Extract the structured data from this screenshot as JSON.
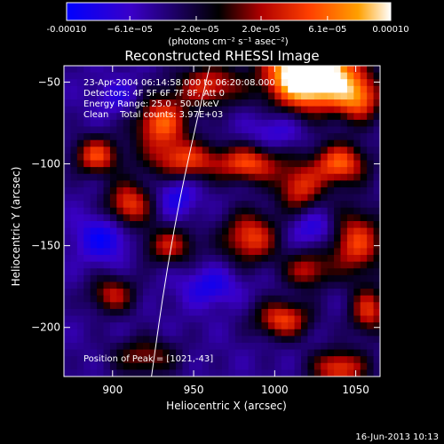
{
  "colorbar": {
    "ticks": [
      {
        "value": -0.0001,
        "label": "-0.00010"
      },
      {
        "value": -6.1e-05,
        "label": "−6.1e−05"
      },
      {
        "value": -2e-05,
        "label": "−2.0e−05"
      },
      {
        "value": 2e-05,
        "label": "2.0e−05"
      },
      {
        "value": 6.1e-05,
        "label": "6.1e−05"
      },
      {
        "value": 0.0001,
        "label": "0.00010"
      }
    ],
    "range": [
      -0.0001,
      0.0001
    ],
    "unit_label": "(photons cm⁻² s⁻¹ asec⁻²)",
    "colors": [
      "#0000ff",
      "#3a00c8",
      "#000000",
      "#b00000",
      "#ff4000",
      "#ffa000",
      "#ffffff"
    ]
  },
  "chart_data": {
    "type": "heatmap",
    "title": "Reconstructed RHESSI Image",
    "xlabel": "Heliocentric X (arcsec)",
    "ylabel": "Heliocentric Y (arcsec)",
    "xlim": [
      870,
      1065
    ],
    "ylim": [
      -230,
      -40
    ],
    "xticks": [
      900,
      950,
      1000,
      1050
    ],
    "yticks": [
      -50,
      -100,
      -150,
      -200
    ],
    "annotations": [
      "23-Apr-2004 06:14:58.000 to 06:20:08.000",
      "Detectors: 4F 5F 6F 7F 8F, Att 0",
      "Energy Range: 25.0 - 50.0 keV",
      "Clean    Total counts: 3.97E+03"
    ],
    "peak_label": "Position of Peak = [1021,-43]",
    "peak": {
      "x": 1021,
      "y": -43
    },
    "limb_curve": {
      "x_at_top": 960,
      "x_at_bottom": 924
    },
    "grid_resolution": [
      48,
      46
    ],
    "field": {
      "base": -4.5e-05,
      "blobs": [
        {
          "x": 1022,
          "y": -45,
          "amp": 0.00022,
          "sx": 18,
          "sy": 14
        },
        {
          "x": 1052,
          "y": -60,
          "amp": 9e-05,
          "sx": 10,
          "sy": 10
        },
        {
          "x": 960,
          "y": -52,
          "amp": 8e-05,
          "sx": 14,
          "sy": 9
        },
        {
          "x": 930,
          "y": -75,
          "amp": 0.0001,
          "sx": 12,
          "sy": 12
        },
        {
          "x": 890,
          "y": -95,
          "amp": 9e-05,
          "sx": 10,
          "sy": 8
        },
        {
          "x": 945,
          "y": -98,
          "amp": 8e-05,
          "sx": 16,
          "sy": 8
        },
        {
          "x": 985,
          "y": -100,
          "amp": 9e-05,
          "sx": 14,
          "sy": 8
        },
        {
          "x": 1040,
          "y": -100,
          "amp": 0.0001,
          "sx": 12,
          "sy": 9
        },
        {
          "x": 1015,
          "y": -115,
          "amp": 8e-05,
          "sx": 10,
          "sy": 10
        },
        {
          "x": 910,
          "y": -125,
          "amp": 9e-05,
          "sx": 10,
          "sy": 10
        },
        {
          "x": 985,
          "y": -145,
          "amp": 9e-05,
          "sx": 12,
          "sy": 11
        },
        {
          "x": 935,
          "y": -150,
          "amp": 7e-05,
          "sx": 12,
          "sy": 8
        },
        {
          "x": 1050,
          "y": -148,
          "amp": 9e-05,
          "sx": 12,
          "sy": 14
        },
        {
          "x": 1020,
          "y": -165,
          "amp": 7e-05,
          "sx": 10,
          "sy": 8
        },
        {
          "x": 900,
          "y": -180,
          "amp": 7e-05,
          "sx": 10,
          "sy": 8
        },
        {
          "x": 1005,
          "y": -195,
          "amp": 9e-05,
          "sx": 12,
          "sy": 8
        },
        {
          "x": 1058,
          "y": -190,
          "amp": 8e-05,
          "sx": 8,
          "sy": 10
        },
        {
          "x": 1040,
          "y": -225,
          "amp": 9e-05,
          "sx": 12,
          "sy": 8
        },
        {
          "x": 920,
          "y": -218,
          "amp": 6e-05,
          "sx": 14,
          "sy": 8
        },
        {
          "x": 895,
          "y": -145,
          "amp": -5e-05,
          "sx": 12,
          "sy": 10
        },
        {
          "x": 1025,
          "y": -140,
          "amp": -4e-05,
          "sx": 10,
          "sy": 8
        },
        {
          "x": 960,
          "y": -175,
          "amp": -4e-05,
          "sx": 12,
          "sy": 8
        },
        {
          "x": 940,
          "y": -120,
          "amp": -4e-05,
          "sx": 8,
          "sy": 8
        },
        {
          "x": 1000,
          "y": -80,
          "amp": -3e-05,
          "sx": 12,
          "sy": 8
        },
        {
          "x": 905,
          "y": -60,
          "amp": -3e-05,
          "sx": 10,
          "sy": 8
        }
      ]
    }
  },
  "footer": {
    "date": "16-Jun-2013 10:13"
  }
}
